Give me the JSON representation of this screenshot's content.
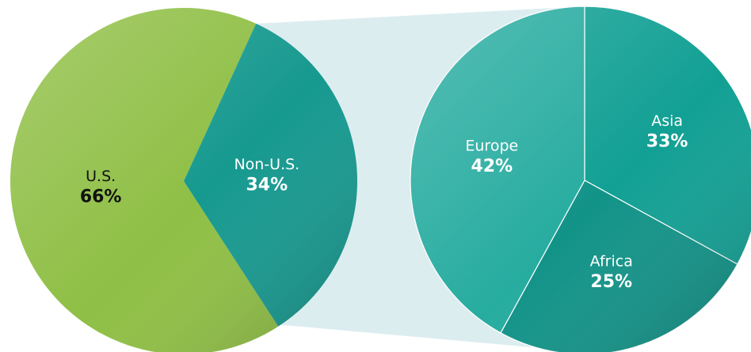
{
  "chart_data": [
    {
      "type": "pie",
      "categories": [
        "U.S.",
        "Non-U.S."
      ],
      "values": [
        66,
        34
      ],
      "value_labels": [
        "66%",
        "34%"
      ],
      "colors": [
        "#8fbf45",
        "#16998f"
      ]
    },
    {
      "type": "pie",
      "categories": [
        "Asia",
        "Africa",
        "Europe"
      ],
      "values": [
        33,
        25,
        42
      ],
      "value_labels": [
        "33%",
        "25%",
        "42%"
      ],
      "colors": [
        "#12a094",
        "#129388",
        "#27aca0"
      ]
    }
  ]
}
